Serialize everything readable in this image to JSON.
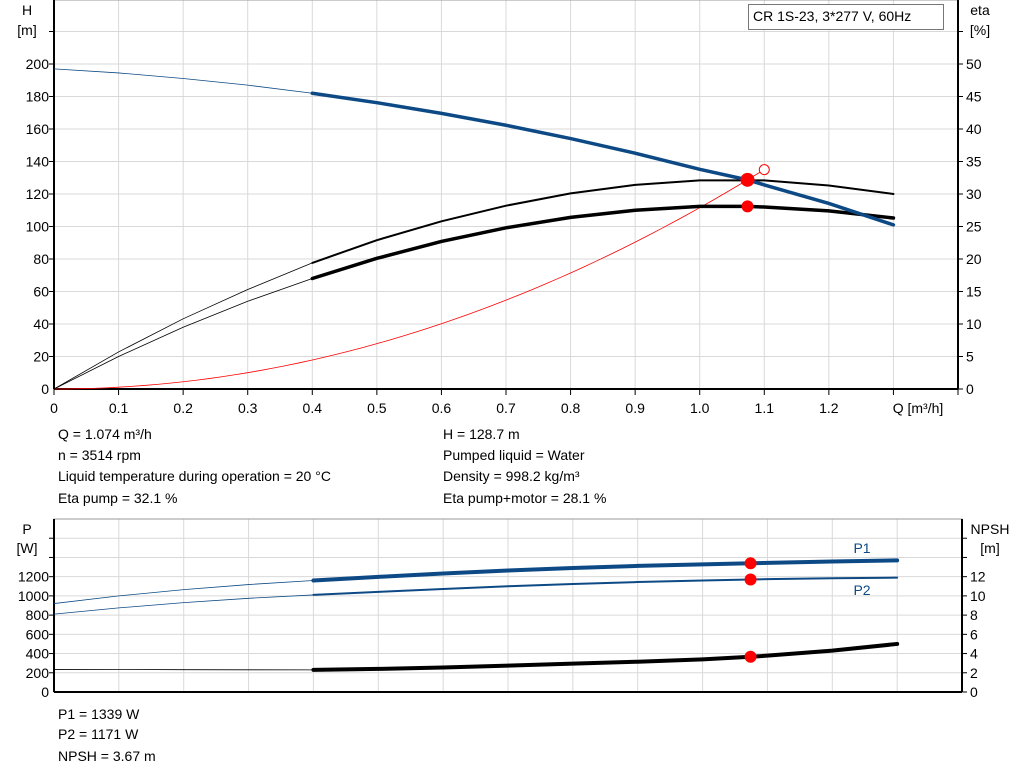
{
  "title_box": "CR 1S-23, 3*277 V, 60Hz",
  "colors": {
    "head": "#0d4a85",
    "eta": "#000000",
    "system": "#ff0000",
    "power": "#0d4a85",
    "npsh": "#000000",
    "duty_point": "#ff0000",
    "grid": "#d9d9d9"
  },
  "info": {
    "left": [
      "Q = 1.074 m³/h",
      "n = 3514 rpm",
      "Liquid temperature during operation = 20 °C",
      "Eta pump = 32.1 %"
    ],
    "right": [
      "H = 128.7 m",
      "Pumped liquid = Water",
      "Density = 998.2 kg/m³",
      "Eta pump+motor = 28.1 %"
    ]
  },
  "bottom_info": [
    "P1 = 1339 W",
    "P2 = 1171 W",
    "NPSH = 3.67 m"
  ],
  "chart_data": [
    {
      "type": "line",
      "xlabel": "Q [m³/h]",
      "ylabel_left": [
        "H",
        "[m]"
      ],
      "ylabel_right": [
        "eta",
        "[%]"
      ],
      "xlim": [
        0,
        1.4
      ],
      "ylim_left": [
        0,
        220
      ],
      "ylim_right": [
        0,
        55
      ],
      "xticks": [
        0,
        0.1,
        0.2,
        0.3,
        0.4,
        0.5,
        0.6,
        0.7,
        0.8,
        0.9,
        1.0,
        1.1,
        1.2
      ],
      "xtick_labels": [
        "0",
        "0.1",
        "0.2",
        "0.3",
        "0.4",
        "0.5",
        "0.6",
        "0.7",
        "0.8",
        "0.9",
        "1.0",
        "1.1",
        "1.2"
      ],
      "yticks_left": [
        0,
        20,
        40,
        60,
        80,
        100,
        120,
        140,
        160,
        180,
        200
      ],
      "yticks_right": [
        0,
        5,
        10,
        15,
        20,
        25,
        30,
        35,
        40,
        45,
        50
      ],
      "grid": true,
      "operating_range_start": 0.4,
      "x": [
        0,
        0.1,
        0.2,
        0.3,
        0.4,
        0.5,
        0.6,
        0.7,
        0.8,
        0.9,
        1.0,
        1.074,
        1.1,
        1.2,
        1.3
      ],
      "series": [
        {
          "key": "head",
          "axis": "left",
          "values": [
            197,
            194.5,
            191.1,
            187,
            182,
            176.2,
            169.6,
            162.3,
            154.1,
            145.1,
            135.2,
            128.7,
            125.6,
            114.2,
            101
          ]
        },
        {
          "key": "eta_pump",
          "axis": "right",
          "values": [
            0,
            5.7,
            10.8,
            15.3,
            19.4,
            22.9,
            25.8,
            28.2,
            30.1,
            31.4,
            32.1,
            32.1,
            32.1,
            31.3,
            30
          ]
        },
        {
          "key": "eta_pump_motor",
          "axis": "right",
          "values": [
            0,
            5.0,
            9.5,
            13.5,
            17,
            20.1,
            22.7,
            24.8,
            26.4,
            27.5,
            28.1,
            28.1,
            28.0,
            27.4,
            26.3
          ]
        }
      ],
      "system_curve": {
        "q": 1.074,
        "h": 128.7,
        "end_q": 1.1
      },
      "duty_point": {
        "q": 1.074,
        "h": 128.7,
        "eta_pump_motor": 28.1
      },
      "reference_point": {
        "q": 1.1,
        "h": 135
      }
    },
    {
      "type": "line",
      "ylabel_left": [
        "P",
        "[W]"
      ],
      "ylabel_right": [
        "NPSH",
        "[m]"
      ],
      "xlim": [
        0,
        1.4
      ],
      "ylim_left": [
        0,
        1800
      ],
      "ylim_right": [
        0,
        18
      ],
      "yticks_left": [
        0,
        200,
        400,
        600,
        800,
        1000,
        1200
      ],
      "yticks_right": [
        0,
        2,
        4,
        6,
        8,
        10,
        12
      ],
      "grid": true,
      "operating_range_start": 0.4,
      "x": [
        0,
        0.1,
        0.2,
        0.3,
        0.4,
        0.5,
        0.6,
        0.7,
        0.8,
        0.9,
        1.0,
        1.074,
        1.1,
        1.2,
        1.3
      ],
      "series": [
        {
          "name": "P1",
          "key": "p1",
          "axis": "left",
          "values": [
            920,
            1000,
            1065,
            1118,
            1160,
            1198,
            1233,
            1264,
            1290,
            1312,
            1328,
            1339,
            1343,
            1358,
            1370
          ]
        },
        {
          "name": "P2",
          "key": "p2",
          "axis": "left",
          "values": [
            810,
            875,
            930,
            975,
            1010,
            1042,
            1072,
            1100,
            1124,
            1144,
            1160,
            1171,
            1174,
            1184,
            1190
          ]
        },
        {
          "key": "npsh",
          "axis": "right",
          "values": [
            2.35,
            2.34,
            2.32,
            2.31,
            2.3,
            2.4,
            2.55,
            2.75,
            2.95,
            3.15,
            3.4,
            3.67,
            3.78,
            4.3,
            5.0
          ]
        }
      ],
      "duty_point": {
        "q": 1.074,
        "p1": 1339,
        "p2": 1171,
        "npsh": 3.67
      }
    }
  ]
}
